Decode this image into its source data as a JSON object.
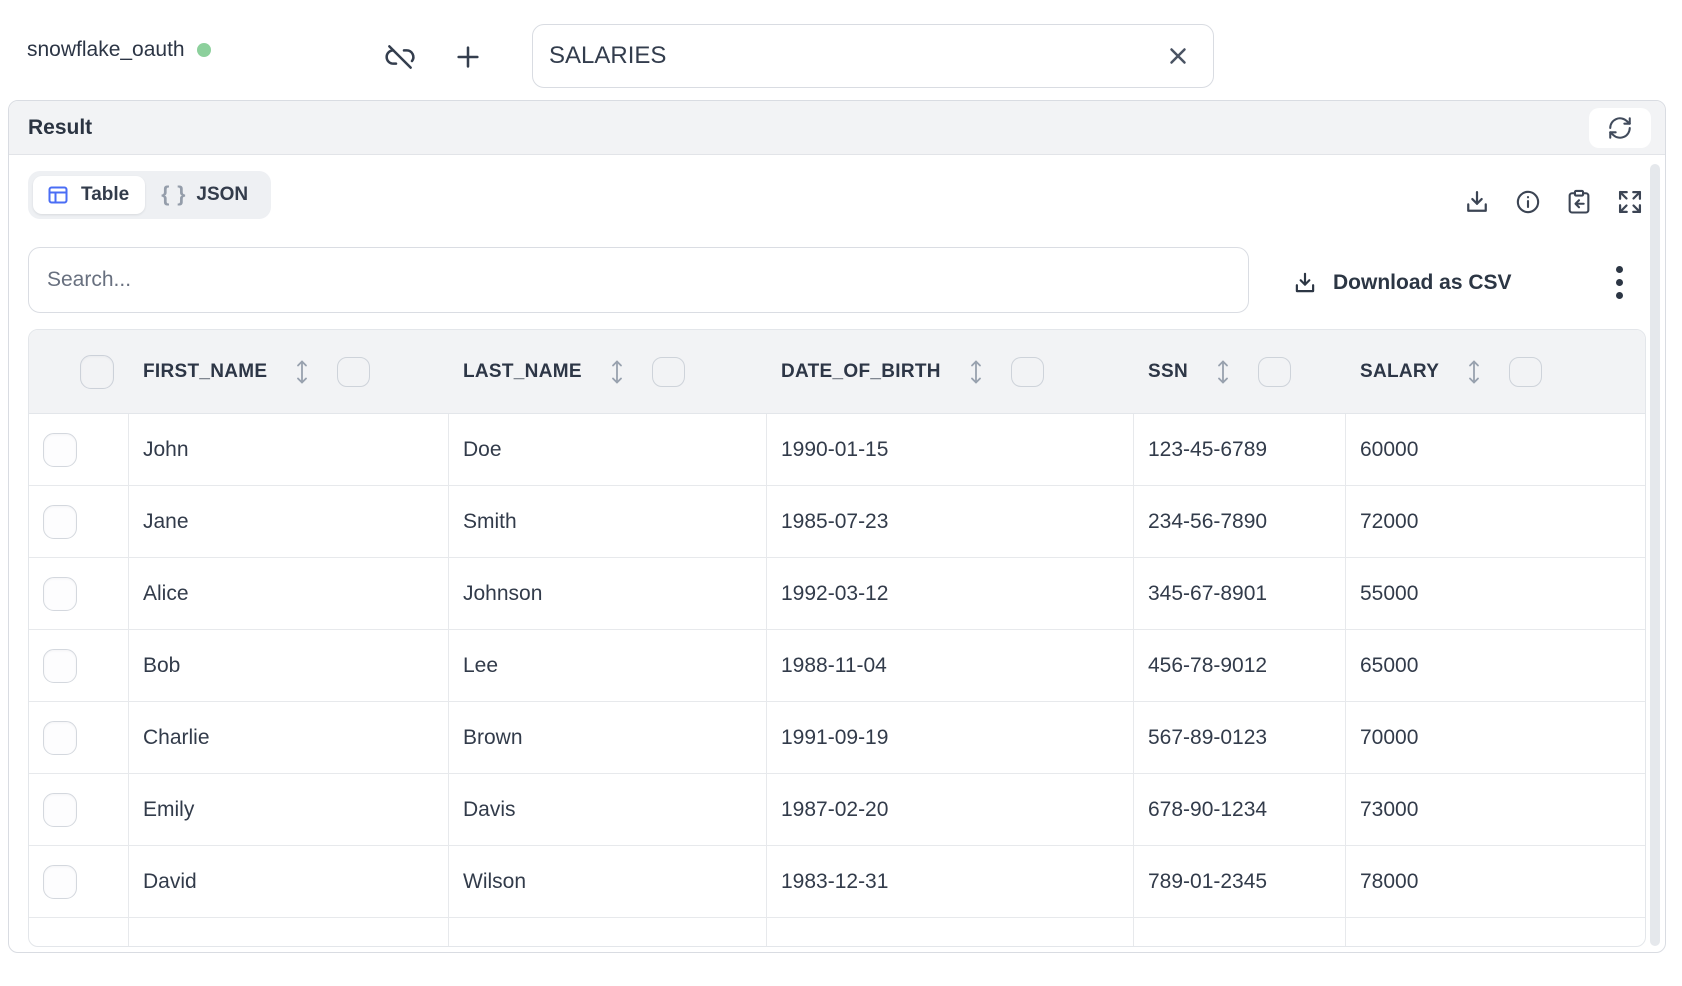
{
  "topbar": {
    "connection_name": "snowflake_oauth",
    "query_tab_title": "SALARIES"
  },
  "result_panel": {
    "title": "Result"
  },
  "view_tabs": {
    "table_label": "Table",
    "json_braces": "{ }",
    "json_label": "JSON"
  },
  "search": {
    "placeholder": "Search..."
  },
  "actions": {
    "download_csv_label": "Download as CSV"
  },
  "table": {
    "columns": [
      "FIRST_NAME",
      "LAST_NAME",
      "DATE_OF_BIRTH",
      "SSN",
      "SALARY"
    ],
    "rows": [
      [
        "John",
        "Doe",
        "1990-01-15",
        "123-45-6789",
        "60000"
      ],
      [
        "Jane",
        "Smith",
        "1985-07-23",
        "234-56-7890",
        "72000"
      ],
      [
        "Alice",
        "Johnson",
        "1992-03-12",
        "345-67-8901",
        "55000"
      ],
      [
        "Bob",
        "Lee",
        "1988-11-04",
        "456-78-9012",
        "65000"
      ],
      [
        "Charlie",
        "Brown",
        "1991-09-19",
        "567-89-0123",
        "70000"
      ],
      [
        "Emily",
        "Davis",
        "1987-02-20",
        "678-90-1234",
        "73000"
      ],
      [
        "David",
        "Wilson",
        "1983-12-31",
        "789-01-2345",
        "78000"
      ]
    ]
  },
  "colors": {
    "accent_blue": "#4a6df5",
    "status_green": "#8cd09c"
  }
}
